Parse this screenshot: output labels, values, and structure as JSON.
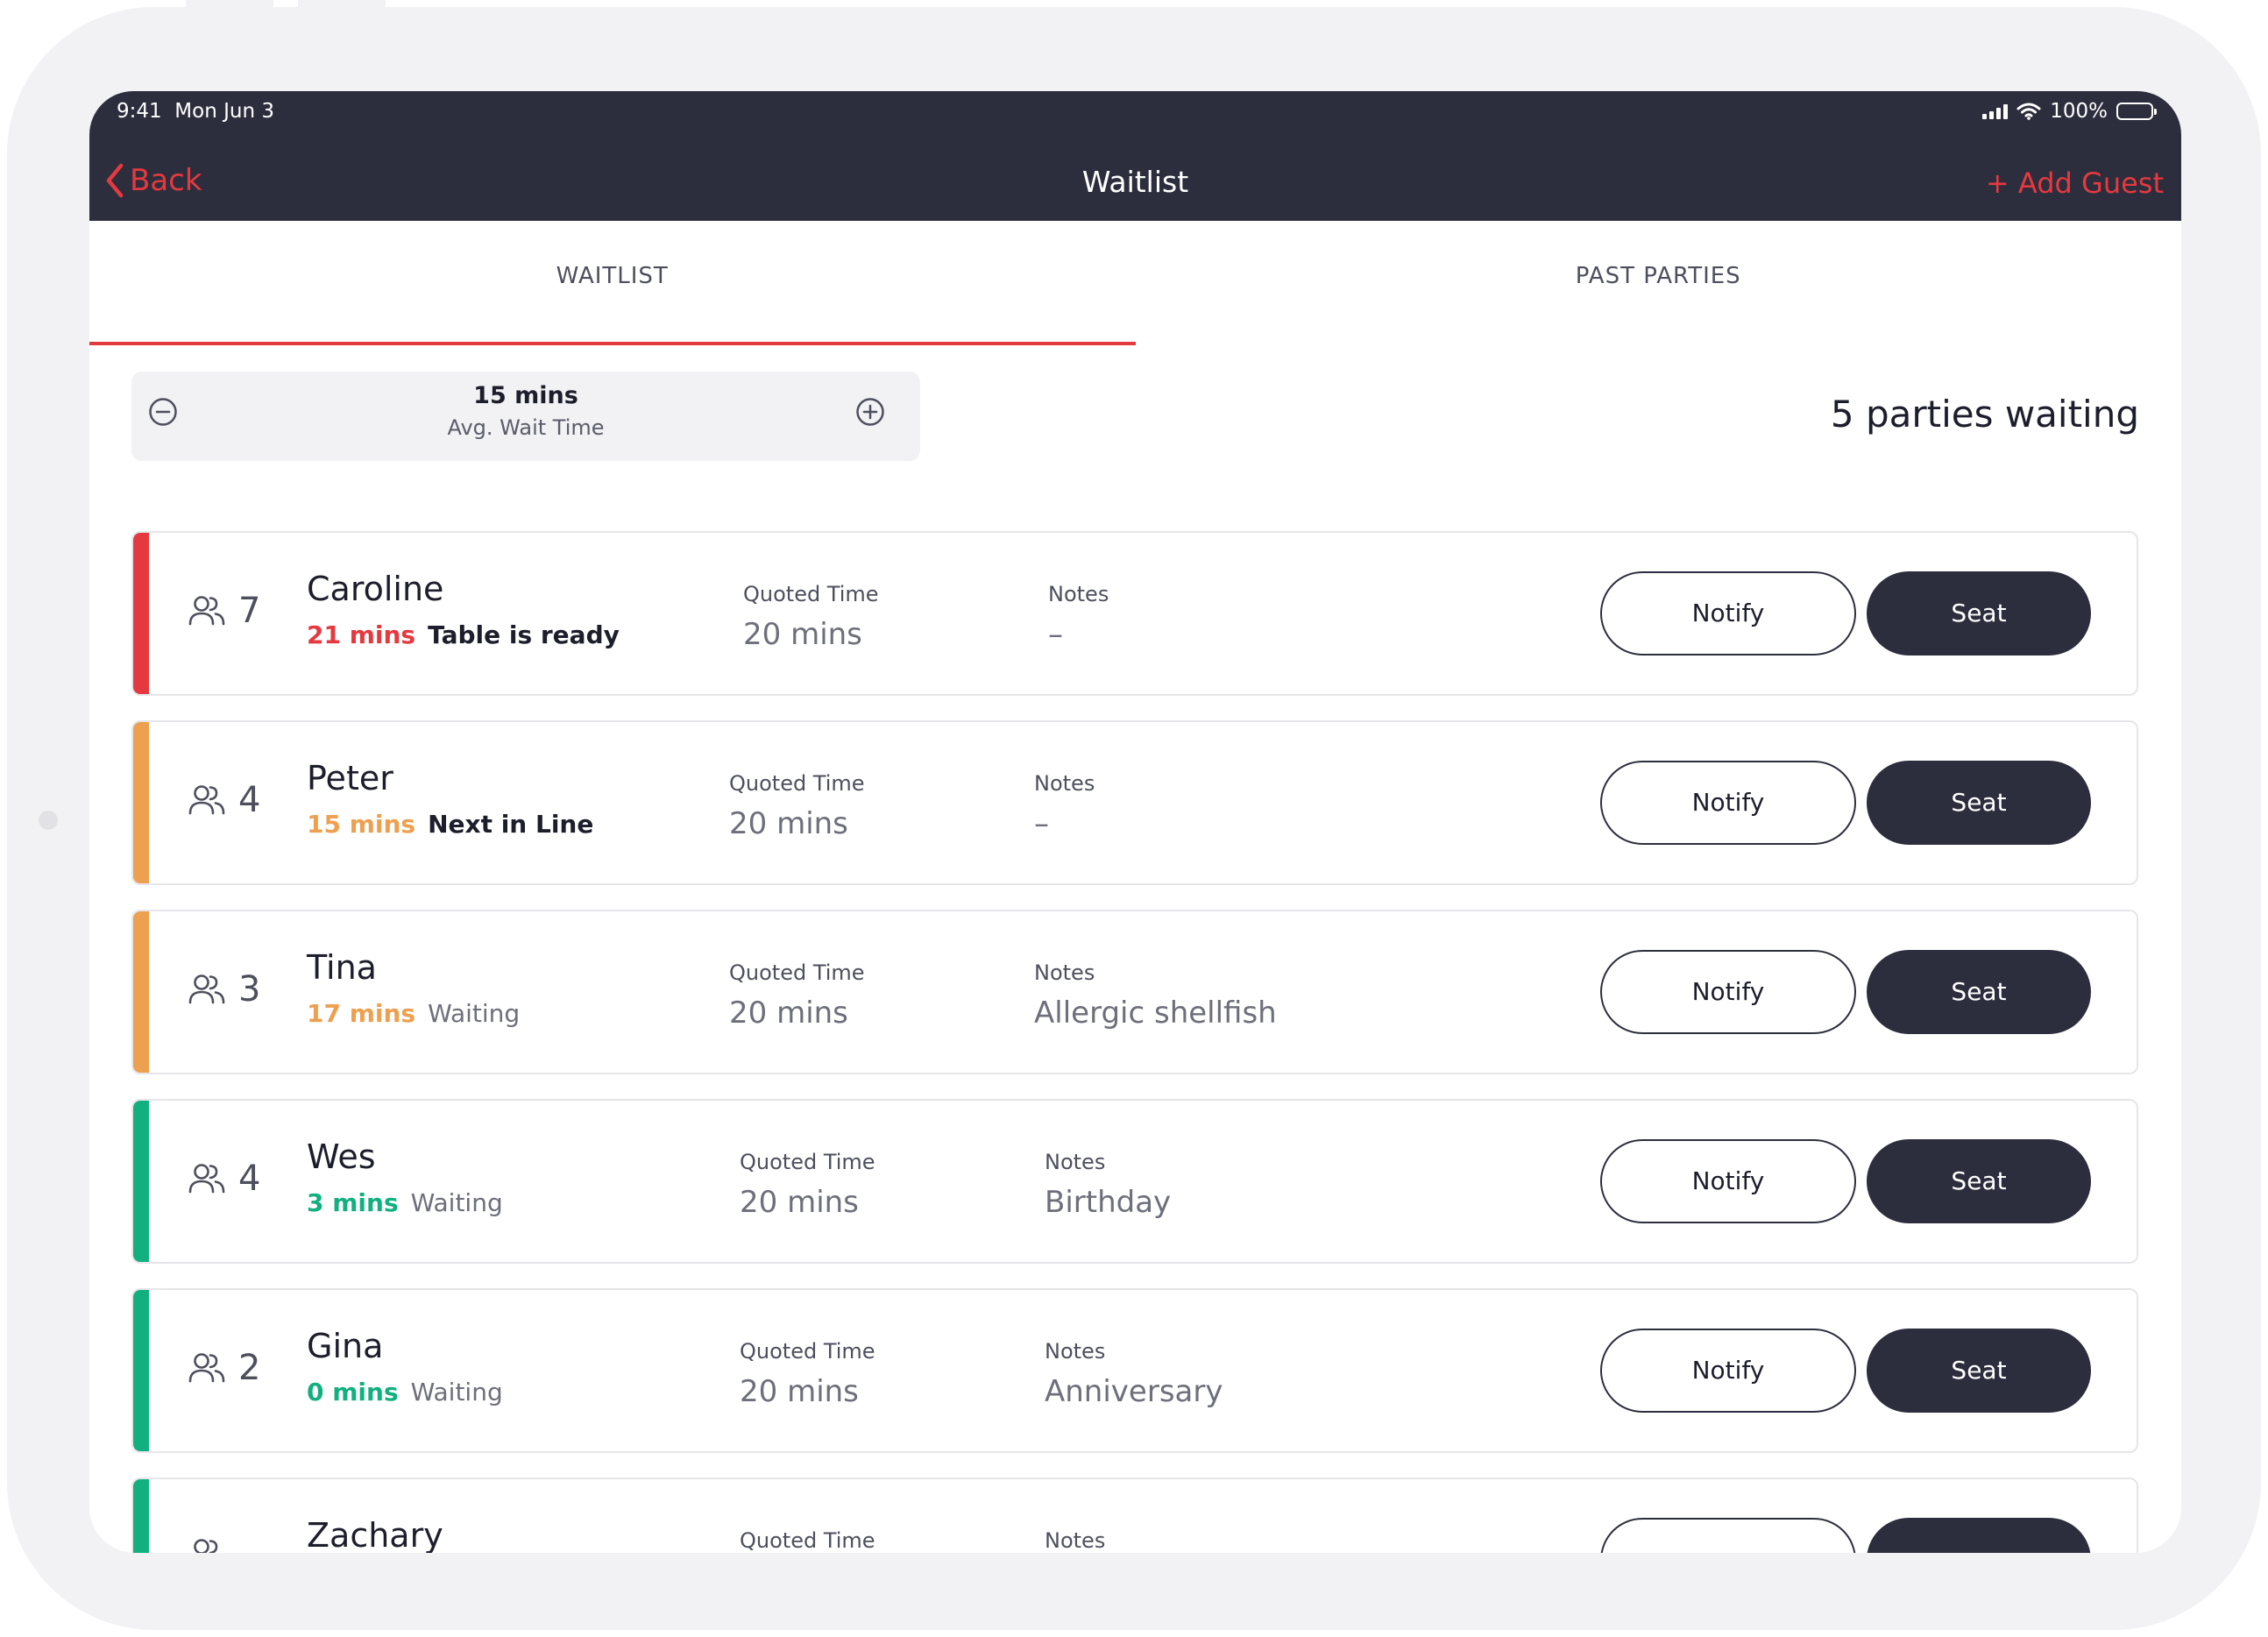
{
  "status_bar": {
    "time": "9:41",
    "date": "Mon Jun 3",
    "battery": "100%"
  },
  "nav": {
    "back_label": "Back",
    "title": "Waitlist",
    "add_guest_label": "+ Add Guest"
  },
  "tabs": [
    {
      "label": "WAITLIST",
      "active": true
    },
    {
      "label": "PAST PARTIES",
      "active": false
    }
  ],
  "wait_time": {
    "value": "15 mins",
    "label": "Avg. Wait Time"
  },
  "parties_waiting": "5 parties waiting",
  "colors": {
    "red": "#e53940",
    "orange": "#eda050",
    "green": "#12b07f",
    "dark": "#2d2e3d"
  },
  "parties": [
    {
      "size": "7",
      "name": "Caroline",
      "mins": "21 mins",
      "status": "Table is ready",
      "color": "#e53940",
      "status_style": "bold",
      "quoted_label": "Quoted Time",
      "quoted_value": "20 mins",
      "notes_label": "Notes",
      "notes_value": "–",
      "notify_label": "Notify",
      "seat_label": "Seat"
    },
    {
      "size": "4",
      "name": "Peter",
      "mins": "15 mins",
      "status": "Next in Line",
      "color": "#eda050",
      "status_style": "bold",
      "quoted_label": "Quoted Time",
      "quoted_value": "20 mins",
      "notes_label": "Notes",
      "notes_value": "–",
      "notify_label": "Notify",
      "seat_label": "Seat"
    },
    {
      "size": "3",
      "name": "Tina",
      "mins": "17 mins",
      "status": "Waiting",
      "color": "#eda050",
      "status_style": "plain",
      "quoted_label": "Quoted Time",
      "quoted_value": "20 mins",
      "notes_label": "Notes",
      "notes_value": "Allergic shellfish",
      "notify_label": "Notify",
      "seat_label": "Seat"
    },
    {
      "size": "4",
      "name": "Wes",
      "mins": "3 mins",
      "status": "Waiting",
      "color": "#12b07f",
      "status_style": "plain",
      "quoted_label": "Quoted Time",
      "quoted_value": "20 mins",
      "notes_label": "Notes",
      "notes_value": "Birthday",
      "notify_label": "Notify",
      "seat_label": "Seat"
    },
    {
      "size": "2",
      "name": "Gina",
      "mins": "0 mins",
      "status": "Waiting",
      "color": "#12b07f",
      "status_style": "plain",
      "quoted_label": "Quoted Time",
      "quoted_value": "20 mins",
      "notes_label": "Notes",
      "notes_value": "Anniversary",
      "notify_label": "Notify",
      "seat_label": "Seat"
    },
    {
      "size": "",
      "name": "Zachary",
      "mins": "",
      "status": "",
      "color": "#12b07f",
      "status_style": "plain",
      "quoted_label": "Quoted Time",
      "quoted_value": "",
      "notes_label": "Notes",
      "notes_value": "",
      "notify_label": "",
      "seat_label": ""
    }
  ]
}
